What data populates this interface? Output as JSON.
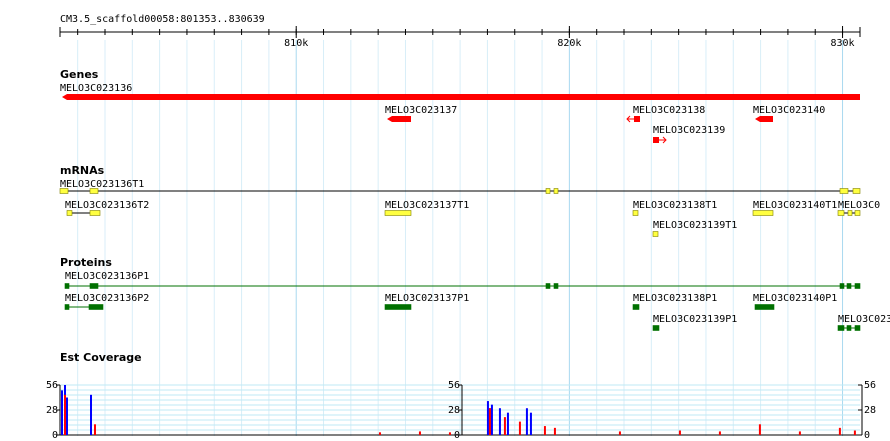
{
  "ruler": {
    "title": "CM3.5_scaffold00058:801353..830639",
    "start": 801353,
    "end": 830639,
    "ticks": [
      {
        "value": 810000,
        "label": "810k"
      },
      {
        "value": 820000,
        "label": "820k"
      },
      {
        "value": 830000,
        "label": "830k"
      }
    ]
  },
  "tracks": [
    {
      "title": "Genes",
      "features": [
        {
          "label": "MELO3C023136"
        },
        {
          "label": "MELO3C023137"
        },
        {
          "label": "MELO3C023138"
        },
        {
          "label": "MELO3C023139"
        },
        {
          "label": "MELO3C023140"
        }
      ]
    },
    {
      "title": "mRNAs",
      "features": [
        {
          "label": "MELO3C023136T1"
        },
        {
          "label": "MELO3C023136T2"
        },
        {
          "label": "MELO3C023137T1"
        },
        {
          "label": "MELO3C023138T1"
        },
        {
          "label": "MELO3C023139T1"
        },
        {
          "label": "MELO3C023140T1"
        },
        {
          "label": "MELO3C0"
        }
      ]
    },
    {
      "title": "Proteins",
      "features": [
        {
          "label": "MELO3C023136P1"
        },
        {
          "label": "MELO3C023136P2"
        },
        {
          "label": "MELO3C023137P1"
        },
        {
          "label": "MELO3C023138P1"
        },
        {
          "label": "MELO3C023140P1"
        },
        {
          "label": "MELO3C023139P1"
        },
        {
          "label": "MELO3C023"
        }
      ]
    }
  ],
  "coverage": {
    "title": "Est Coverage",
    "ylim": [
      0,
      56
    ],
    "yticks": [
      0,
      28,
      56
    ],
    "series": [
      {
        "color": "#0000ff",
        "x": [
          801426,
          801536,
          801609,
          802488,
          817019,
          817092,
          817165,
          817458,
          817751,
          818446,
          818593
        ],
        "values": [
          50,
          56,
          42,
          45,
          38,
          30,
          34,
          30,
          25,
          30,
          25
        ]
      },
      {
        "color": "#ff0000",
        "x": [
          801536,
          802634,
          813066,
          814530,
          815628,
          817092,
          817641,
          818190,
          819105,
          819471,
          821851,
          824047,
          825511,
          826975,
          828439,
          829903,
          830452
        ],
        "values": [
          45,
          12,
          3,
          4,
          3,
          30,
          20,
          15,
          10,
          8,
          4,
          5,
          4,
          12,
          4,
          8,
          5
        ]
      }
    ]
  }
}
